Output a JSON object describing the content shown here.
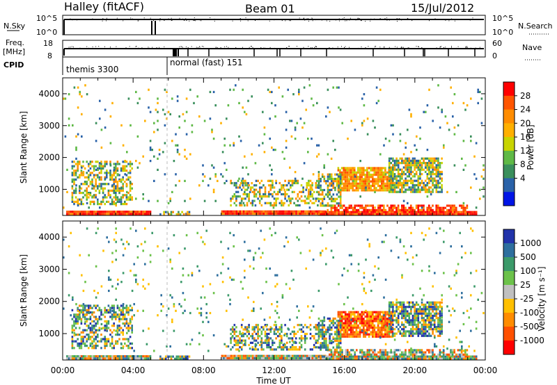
{
  "header": {
    "station": "Halley (fitACF)",
    "beam": "Beam 01",
    "date": "15/Jul/2012"
  },
  "top_panels": {
    "nsky_label": "N.Sky",
    "nsky_ticks": [
      "10^5",
      "10^0"
    ],
    "nsearch_label": "N.Search",
    "nsearch_ticks": [
      "10^5",
      "10^0"
    ],
    "freq_label_1": "Freq.",
    "freq_label_2": "[MHz]",
    "freq_ticks": [
      "18",
      "8"
    ],
    "nave_label": "Nave",
    "nave_ticks": [
      "60",
      "0"
    ],
    "cpid_label": "CPID",
    "cpid_segments": [
      {
        "name": "themis 3300",
        "start_hour": 0,
        "end_hour": 5.9
      },
      {
        "name": "normal (fast) 151",
        "start_hour": 5.9,
        "end_hour": 24
      }
    ]
  },
  "chart_data": [
    {
      "type": "heatmap",
      "name": "power-panel",
      "ylabel": "Slant Range [km]",
      "y_ticks": [
        1000,
        2000,
        3000,
        4000
      ],
      "ylim": [
        180,
        4500
      ],
      "colorbar": {
        "label": "Power [dB]",
        "ticks": [
          "28",
          "24",
          "20",
          "16",
          "12",
          "8",
          "4"
        ],
        "colors": [
          "#ff0000",
          "#ff5500",
          "#ff8c00",
          "#ffb000",
          "#c8d400",
          "#5fb946",
          "#3a8f5c",
          "#2a62a8",
          "#0015e6"
        ]
      }
    },
    {
      "type": "heatmap",
      "name": "velocity-panel",
      "ylabel": "Slant Range [km]",
      "y_ticks": [
        1000,
        2000,
        3000,
        4000
      ],
      "ylim": [
        180,
        4500
      ],
      "colorbar": {
        "label": "Velocity [m s⁻¹]",
        "ticks": [
          "1000",
          "500",
          "100",
          "25",
          "-25",
          "-100",
          "-500",
          "-1000"
        ],
        "colors": [
          "#2233aa",
          "#2e6f9e",
          "#3c9a6a",
          "#6cc24a",
          "#c0c0c0",
          "#ffc000",
          "#ff8c00",
          "#ff5000",
          "#ff0000"
        ]
      }
    }
  ],
  "x_axis": {
    "label": "Time UT",
    "ticks": [
      "00:00",
      "04:00",
      "08:00",
      "12:00",
      "16:00",
      "20:00",
      "00:00"
    ]
  }
}
